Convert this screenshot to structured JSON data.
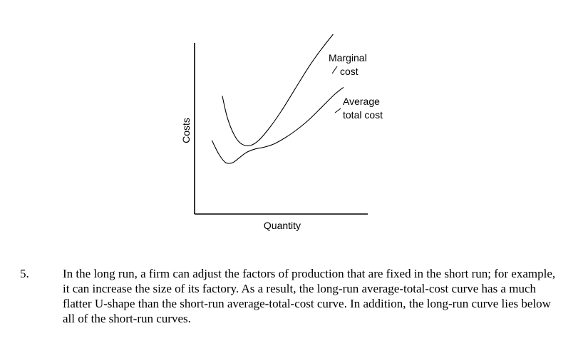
{
  "chart_data": {
    "type": "line",
    "title": "",
    "xlabel": "Quantity",
    "ylabel": "Costs",
    "xlim": [
      0,
      10
    ],
    "ylim": [
      0,
      10
    ],
    "grid": false,
    "series": [
      {
        "name": "Marginal cost",
        "label_lines": [
          "Marginal",
          "cost"
        ],
        "x": [
          1.6,
          1.9,
          2.3,
          2.7,
          3.2,
          3.7,
          4.3,
          5.0,
          5.8,
          6.6,
          7.3,
          8.0
        ],
        "y": [
          6.9,
          5.6,
          4.6,
          4.1,
          4.0,
          4.3,
          5.0,
          6.0,
          7.3,
          8.6,
          9.6,
          10.5
        ]
      },
      {
        "name": "Average total cost",
        "label_lines": [
          "Average",
          "total cost"
        ],
        "x": [
          1.0,
          1.4,
          1.8,
          2.2,
          2.6,
          3.0,
          3.5,
          4.0,
          4.6,
          5.3,
          6.0,
          6.7,
          7.4,
          8.1,
          8.6
        ],
        "y": [
          4.3,
          3.5,
          3.0,
          3.0,
          3.3,
          3.6,
          3.8,
          3.9,
          4.1,
          4.5,
          5.0,
          5.6,
          6.3,
          7.0,
          7.4
        ]
      }
    ]
  },
  "question": {
    "number": "5.",
    "text": "In the long run, a firm can adjust the factors of production that are fixed in the short run; for example, it can increase the size of its factory.  As a result, the long-run average-total-cost curve has a much flatter U-shape than the short-run average-total-cost curve.  In addition, the long-run curve lies below all of the short-run curves."
  }
}
